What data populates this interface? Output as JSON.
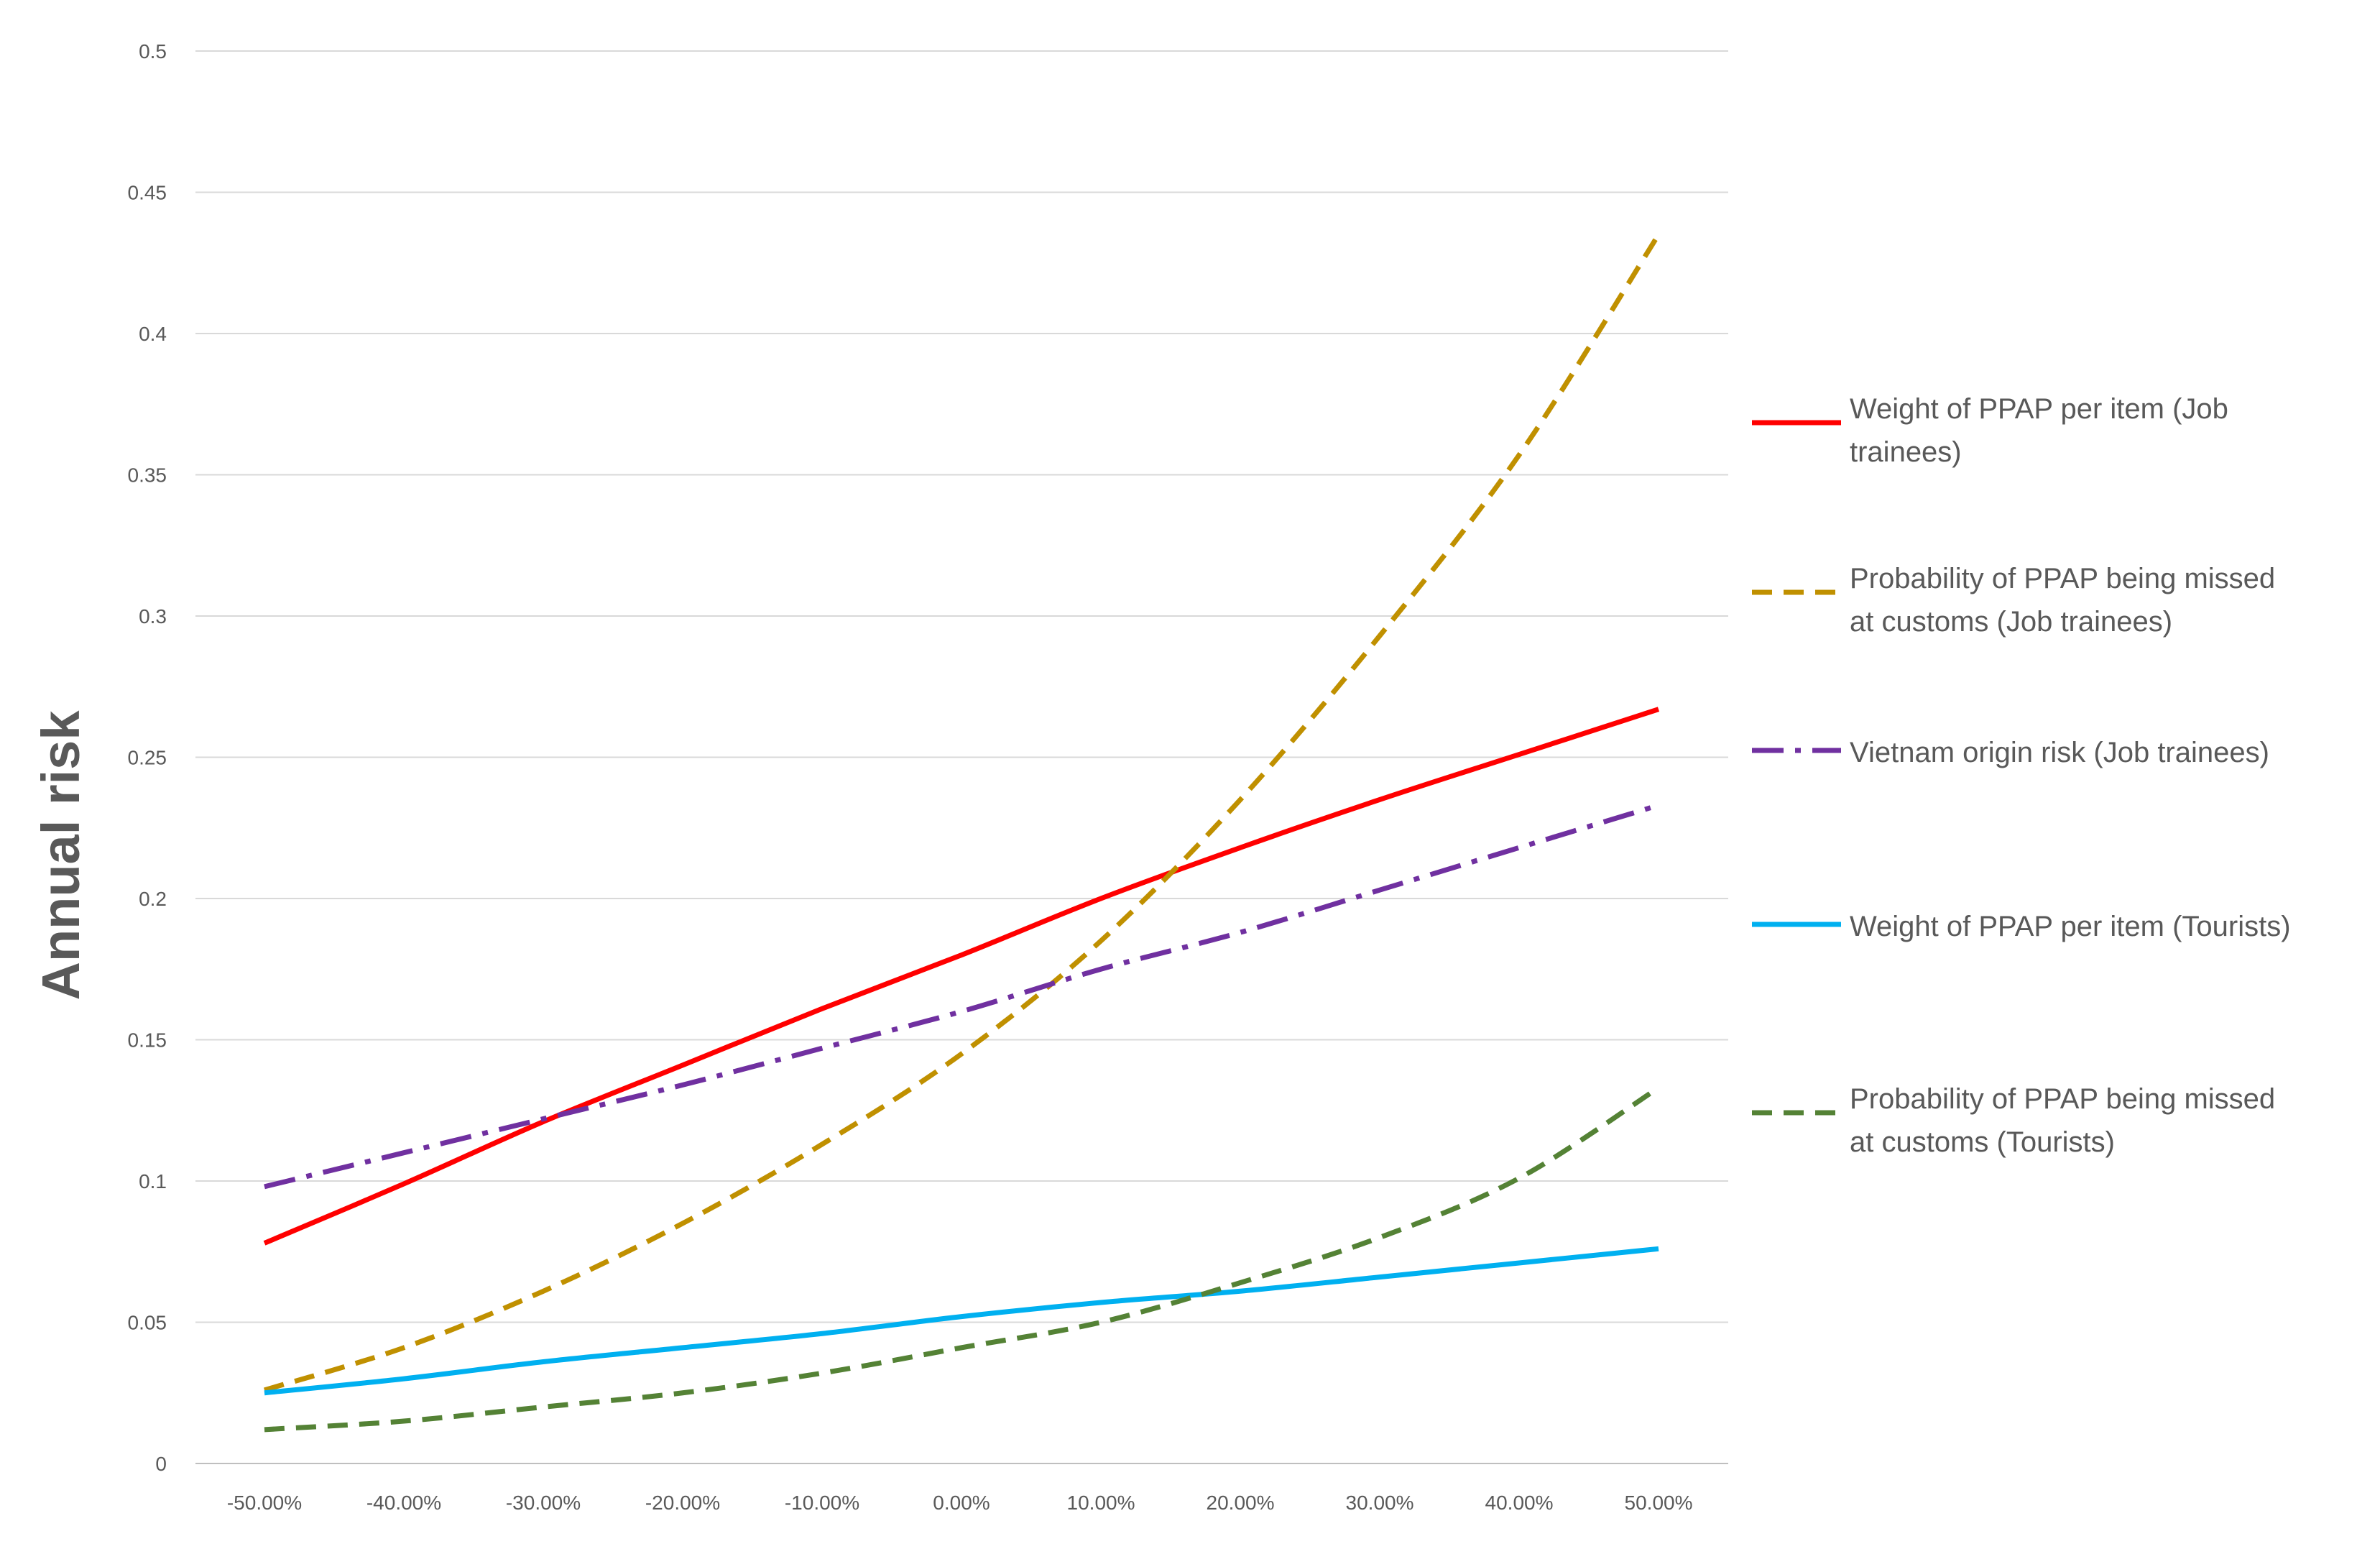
{
  "chart_data": {
    "type": "line",
    "title": "",
    "xlabel": "",
    "ylabel": "Annual risk",
    "ylim": [
      0,
      0.5
    ],
    "y_ticks": [
      "0",
      "0.05",
      "0.1",
      "0.15",
      "0.2",
      "0.25",
      "0.3",
      "0.35",
      "0.4",
      "0.45",
      "0.5"
    ],
    "y_tick_values": [
      0,
      0.05,
      0.1,
      0.15,
      0.2,
      0.25,
      0.3,
      0.35,
      0.4,
      0.45,
      0.5
    ],
    "categories": [
      "-50.00%",
      "-40.00%",
      "-30.00%",
      "-20.00%",
      "-10.00%",
      "0.00%",
      "10.00%",
      "20.00%",
      "30.00%",
      "40.00%",
      "50.00%"
    ],
    "grid": true,
    "legend_position": "right",
    "series": [
      {
        "name": "Weight of PPAP per item (Job trainees)",
        "legend_lines": [
          "Weight of PPAP per item (Job",
          "trainees)"
        ],
        "color": "#FF0000",
        "style": "solid",
        "values": [
          0.078,
          0.099,
          0.121,
          0.141,
          0.161,
          0.18,
          0.2,
          0.218,
          0.235,
          0.251,
          0.267
        ]
      },
      {
        "name": "Probability of PPAP being missed at customs (Job trainees)",
        "legend_lines": [
          "Probability of PPAP being missed",
          "at customs (Job trainees)"
        ],
        "color": "#C09000",
        "style": "dash",
        "values": [
          0.026,
          0.041,
          0.061,
          0.085,
          0.113,
          0.145,
          0.185,
          0.235,
          0.293,
          0.357,
          0.435
        ]
      },
      {
        "name": "Vietnam origin risk (Job trainees)",
        "legend_lines": [
          "Vietnam origin risk (Job trainees)"
        ],
        "color": "#7030A0",
        "style": "dashdot",
        "values": [
          0.098,
          0.11,
          0.122,
          0.134,
          0.147,
          0.16,
          0.175,
          0.188,
          0.203,
          0.218,
          0.233
        ]
      },
      {
        "name": "Weight of PPAP per item (Tourists)",
        "legend_lines": [
          "Weight of PPAP per item (Tourists)"
        ],
        "color": "#00B0F0",
        "style": "solid",
        "values": [
          0.025,
          0.03,
          0.036,
          0.041,
          0.046,
          0.052,
          0.057,
          0.061,
          0.066,
          0.071,
          0.076
        ]
      },
      {
        "name": "Probability of PPAP being missed at customs (Tourists)",
        "legend_lines": [
          "Probability of PPAP being missed",
          "at customs (Tourists)"
        ],
        "color": "#548235",
        "style": "dash",
        "values": [
          0.012,
          0.015,
          0.02,
          0.025,
          0.032,
          0.041,
          0.05,
          0.064,
          0.08,
          0.101,
          0.133
        ]
      }
    ]
  }
}
